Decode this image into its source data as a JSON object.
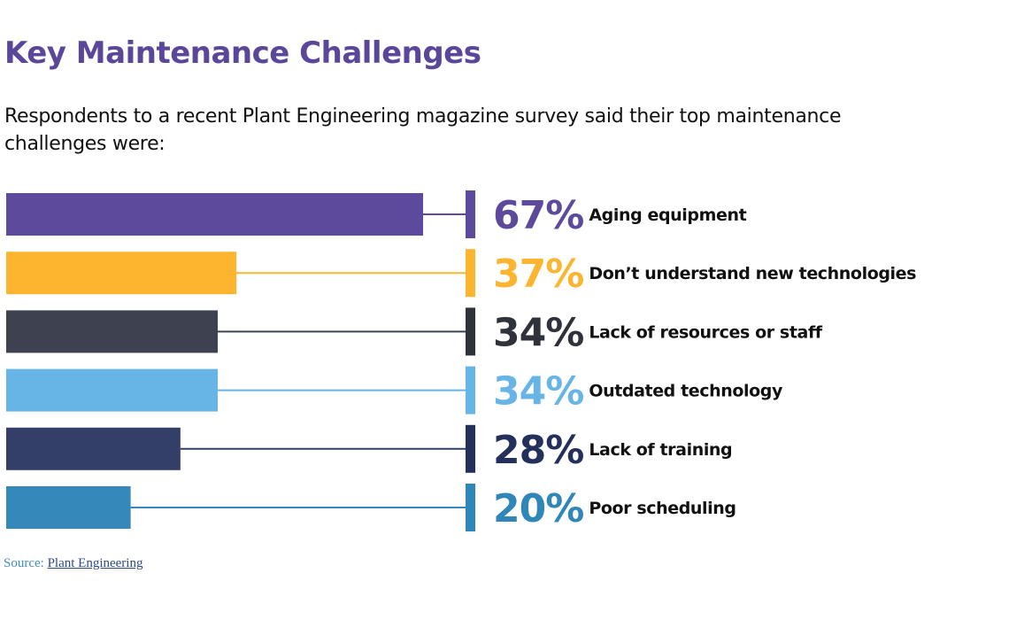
{
  "chart_data": {
    "type": "bar",
    "orientation": "horizontal",
    "title": "Key Maintenance Challenges",
    "subtitle": "Respondents to a recent Plant Engineering magazine survey said their top maintenance challenges were:",
    "unit": "%",
    "xlim": [
      0,
      100
    ],
    "grid": false,
    "legend": "none",
    "categories": [
      "Aging equipment",
      "Don’t understand new technologies",
      "Lack of resources or staff",
      "Outdated technology",
      "Lack of training",
      "Poor scheduling"
    ],
    "values": [
      67,
      37,
      34,
      34,
      28,
      20
    ],
    "value_labels": [
      "67%",
      "37%",
      "34%",
      "34%",
      "28%",
      "20%"
    ],
    "colors": [
      "#5d4a9c",
      "#fdb52f",
      "#3e4250",
      "#67b5e6",
      "#343f67",
      "#3489ba"
    ],
    "label_colors": [
      "#5d4a9c",
      "#fdb52f",
      "#2f323b",
      "#67b5e6",
      "#23305c",
      "#2f86b8"
    ]
  },
  "source": {
    "prefix": "Source: ",
    "link_text": "Plant Engineering"
  }
}
